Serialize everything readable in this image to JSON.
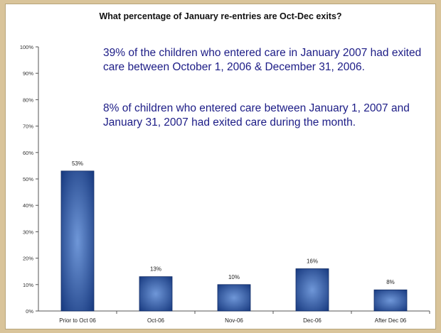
{
  "chart_data": {
    "type": "bar",
    "title": "What percentage of January re-entries are Oct-Dec exits?",
    "categories": [
      "Prior to Oct 06",
      "Oct-06",
      "Nov-06",
      "Dec-06",
      "After Dec 06"
    ],
    "values": [
      53,
      13,
      10,
      16,
      8
    ],
    "data_labels": [
      "53%",
      "13%",
      "10%",
      "16%",
      "8%"
    ],
    "ylim": [
      0,
      100
    ],
    "yticks": [
      "0%",
      "10%",
      "20%",
      "30%",
      "40%",
      "50%",
      "60%",
      "70%",
      "80%",
      "90%",
      "100%"
    ],
    "grid": false,
    "legend": "none",
    "annotations": [
      "39% of the children who entered care in January 2007 had exited care between October 1, 2006 & December 31, 2006.",
      "8% of children who entered care between  January 1, 2007 and January 31, 2007 had exited care during the month."
    ]
  },
  "colors": {
    "bar_dark": "#1a3d8a",
    "bar_light": "#5b86cf",
    "annotation_text": "#1c1c86",
    "axis": "#555555"
  }
}
